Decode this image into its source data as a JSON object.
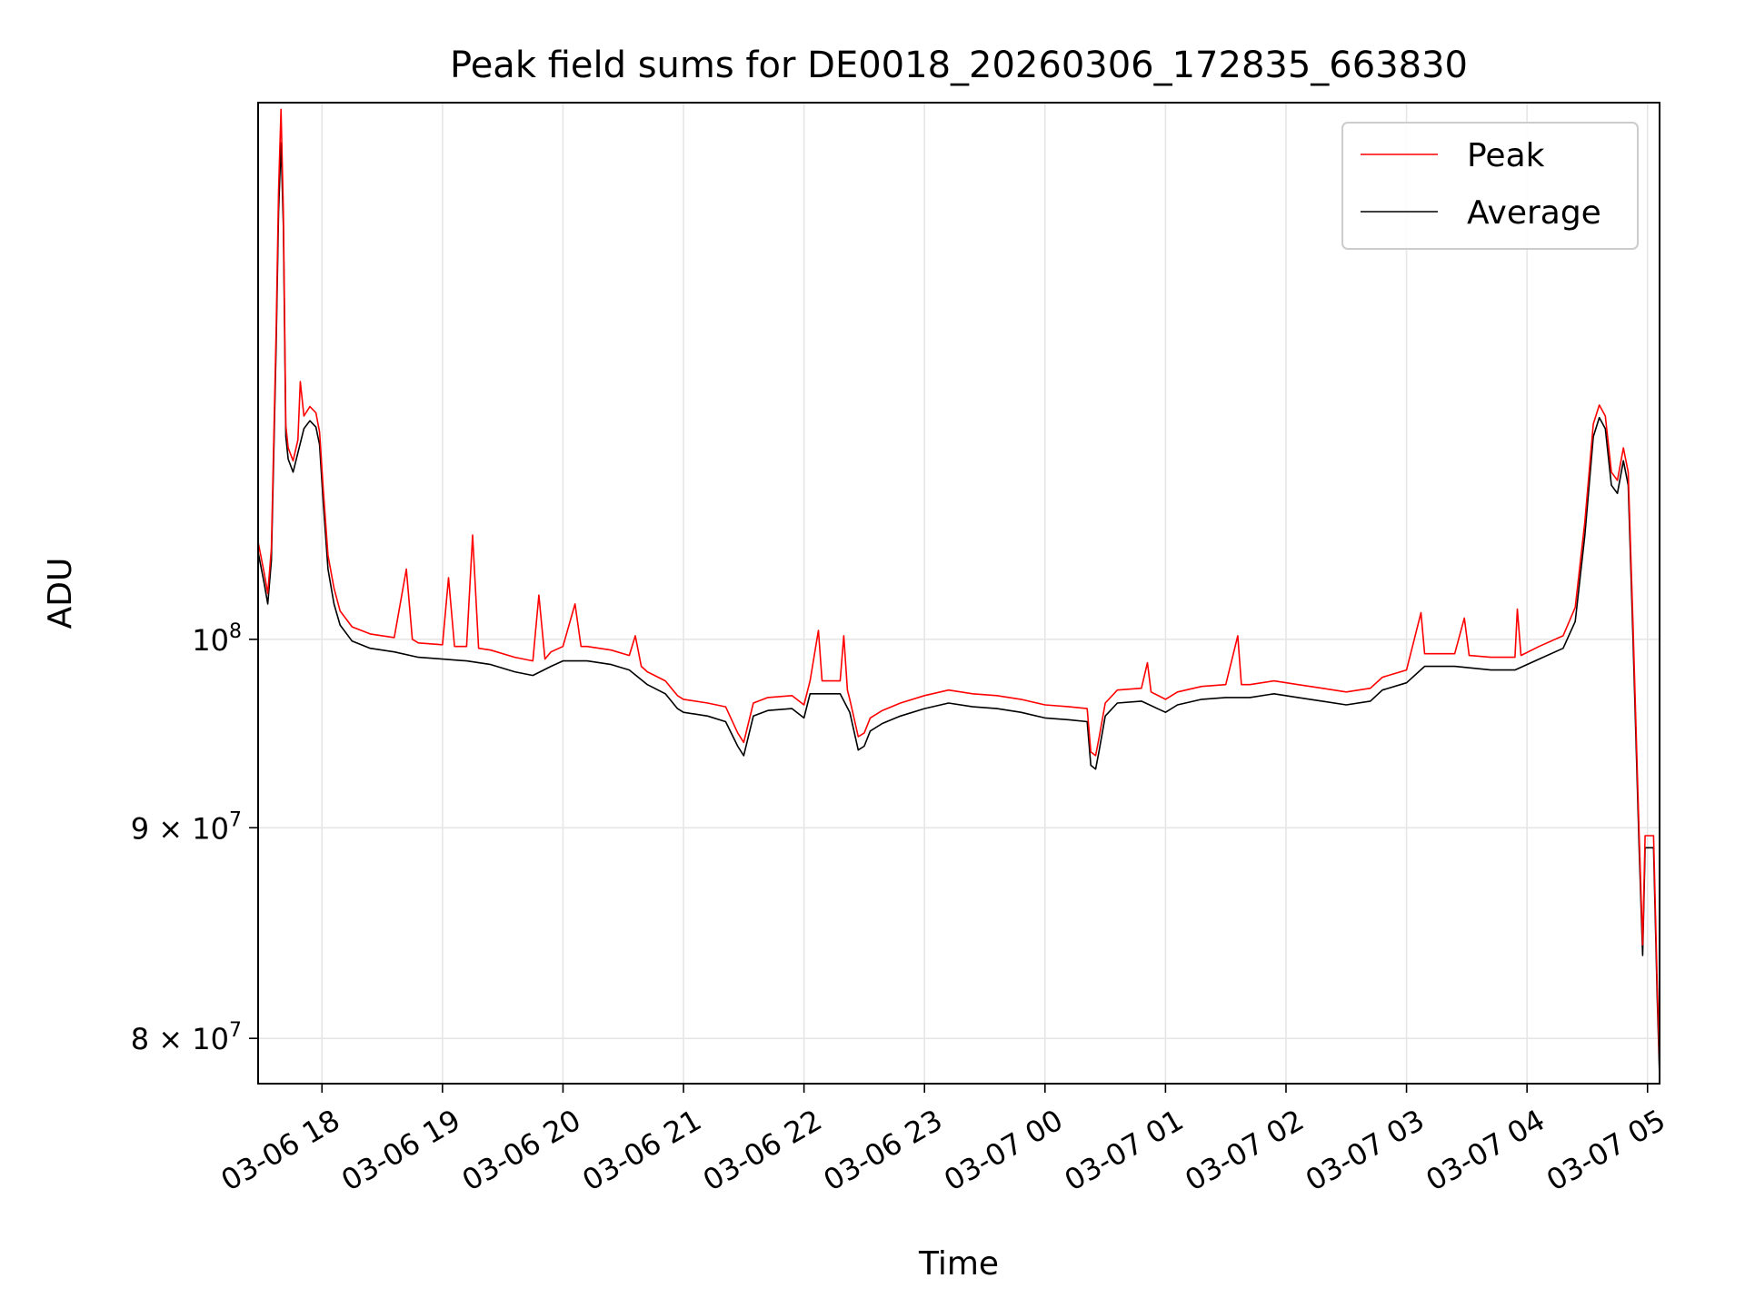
{
  "chart_data": {
    "type": "line",
    "title": "Peak field sums for DE0018_20260306_172835_663830",
    "xlabel": "Time",
    "ylabel": "ADU",
    "yscale": "log",
    "xlim_hours": [
      17.47,
      29.1
    ],
    "ylim": [
      78000000,
      135000000
    ],
    "grid": true,
    "legend_position": "upper right",
    "x_ticks": [
      {
        "hour": 18,
        "label": "03-06 18"
      },
      {
        "hour": 19,
        "label": "03-06 19"
      },
      {
        "hour": 20,
        "label": "03-06 20"
      },
      {
        "hour": 21,
        "label": "03-06 21"
      },
      {
        "hour": 22,
        "label": "03-06 22"
      },
      {
        "hour": 23,
        "label": "03-06 23"
      },
      {
        "hour": 24,
        "label": "03-07 00"
      },
      {
        "hour": 25,
        "label": "03-07 01"
      },
      {
        "hour": 26,
        "label": "03-07 02"
      },
      {
        "hour": 27,
        "label": "03-07 03"
      },
      {
        "hour": 28,
        "label": "03-07 04"
      },
      {
        "hour": 29,
        "label": "03-07 05"
      }
    ],
    "y_ticks": [
      {
        "value": 100000000,
        "base": "10",
        "exp": "8",
        "mant": ""
      },
      {
        "value": 90000000,
        "base": "10",
        "exp": "7",
        "mant": "9"
      },
      {
        "value": 80000000,
        "base": "10",
        "exp": "7",
        "mant": "8"
      }
    ],
    "times_label": "×",
    "series": [
      {
        "name": "Average",
        "color": "#000000",
        "points": [
          [
            17.47,
            105.0
          ],
          [
            17.52,
            103.2
          ],
          [
            17.55,
            102.0
          ],
          [
            17.58,
            104.5
          ],
          [
            17.62,
            118.0
          ],
          [
            17.64,
            127.0
          ],
          [
            17.66,
            132.0
          ],
          [
            17.68,
            126.0
          ],
          [
            17.7,
            112.0
          ],
          [
            17.72,
            110.6
          ],
          [
            17.76,
            109.8
          ],
          [
            17.8,
            111.0
          ],
          [
            17.85,
            112.5
          ],
          [
            17.9,
            113.0
          ],
          [
            17.95,
            112.6
          ],
          [
            17.98,
            111.5
          ],
          [
            18.01,
            108.0
          ],
          [
            18.05,
            104.0
          ],
          [
            18.1,
            102.0
          ],
          [
            18.15,
            100.8
          ],
          [
            18.25,
            99.9
          ],
          [
            18.4,
            99.5
          ],
          [
            18.6,
            99.3
          ],
          [
            18.8,
            99.0
          ],
          [
            19.0,
            98.9
          ],
          [
            19.2,
            98.8
          ],
          [
            19.4,
            98.6
          ],
          [
            19.6,
            98.2
          ],
          [
            19.75,
            98.0
          ],
          [
            19.9,
            98.5
          ],
          [
            20.0,
            98.8
          ],
          [
            20.2,
            98.8
          ],
          [
            20.4,
            98.6
          ],
          [
            20.55,
            98.3
          ],
          [
            20.7,
            97.5
          ],
          [
            20.85,
            97.0
          ],
          [
            20.95,
            96.2
          ],
          [
            21.0,
            96.0
          ],
          [
            21.2,
            95.8
          ],
          [
            21.35,
            95.5
          ],
          [
            21.45,
            94.2
          ],
          [
            21.5,
            93.7
          ],
          [
            21.58,
            95.8
          ],
          [
            21.7,
            96.1
          ],
          [
            21.9,
            96.2
          ],
          [
            22.0,
            95.7
          ],
          [
            22.05,
            97.0
          ],
          [
            22.3,
            97.0
          ],
          [
            22.38,
            96.0
          ],
          [
            22.45,
            94.0
          ],
          [
            22.5,
            94.2
          ],
          [
            22.55,
            95.0
          ],
          [
            22.65,
            95.4
          ],
          [
            22.8,
            95.8
          ],
          [
            23.0,
            96.2
          ],
          [
            23.2,
            96.5
          ],
          [
            23.4,
            96.3
          ],
          [
            23.6,
            96.2
          ],
          [
            23.8,
            96.0
          ],
          [
            24.0,
            95.7
          ],
          [
            24.2,
            95.6
          ],
          [
            24.35,
            95.5
          ],
          [
            24.38,
            93.2
          ],
          [
            24.42,
            93.0
          ],
          [
            24.45,
            94.0
          ],
          [
            24.5,
            95.8
          ],
          [
            24.6,
            96.5
          ],
          [
            24.8,
            96.6
          ],
          [
            25.0,
            96.0
          ],
          [
            25.1,
            96.4
          ],
          [
            25.3,
            96.7
          ],
          [
            25.5,
            96.8
          ],
          [
            25.7,
            96.8
          ],
          [
            25.9,
            97.0
          ],
          [
            26.1,
            96.8
          ],
          [
            26.3,
            96.6
          ],
          [
            26.5,
            96.4
          ],
          [
            26.7,
            96.6
          ],
          [
            26.8,
            97.2
          ],
          [
            27.0,
            97.6
          ],
          [
            27.15,
            98.5
          ],
          [
            27.4,
            98.5
          ],
          [
            27.7,
            98.3
          ],
          [
            27.9,
            98.3
          ],
          [
            28.1,
            98.9
          ],
          [
            28.3,
            99.5
          ],
          [
            28.4,
            101.0
          ],
          [
            28.48,
            106.0
          ],
          [
            28.55,
            112.0
          ],
          [
            28.6,
            113.2
          ],
          [
            28.65,
            112.5
          ],
          [
            28.7,
            109.0
          ],
          [
            28.75,
            108.5
          ],
          [
            28.8,
            110.5
          ],
          [
            28.84,
            109.0
          ],
          [
            28.88,
            100.0
          ],
          [
            28.93,
            89.0
          ],
          [
            28.96,
            83.8
          ],
          [
            28.98,
            89.0
          ],
          [
            29.05,
            89.0
          ],
          [
            29.08,
            82.0
          ],
          [
            29.1,
            78.3
          ]
        ]
      },
      {
        "name": "Peak",
        "color": "#ff0000",
        "points": [
          [
            17.47,
            105.6
          ],
          [
            17.52,
            103.8
          ],
          [
            17.55,
            102.6
          ],
          [
            17.58,
            105.2
          ],
          [
            17.62,
            119.0
          ],
          [
            17.64,
            128.5
          ],
          [
            17.66,
            134.5
          ],
          [
            17.68,
            127.0
          ],
          [
            17.7,
            112.7
          ],
          [
            17.72,
            111.3
          ],
          [
            17.76,
            110.5
          ],
          [
            17.8,
            111.8
          ],
          [
            17.82,
            115.5
          ],
          [
            17.85,
            113.3
          ],
          [
            17.9,
            113.9
          ],
          [
            17.95,
            113.5
          ],
          [
            17.98,
            112.3
          ],
          [
            18.01,
            108.8
          ],
          [
            18.05,
            104.8
          ],
          [
            18.1,
            102.9
          ],
          [
            18.15,
            101.6
          ],
          [
            18.25,
            100.7
          ],
          [
            18.4,
            100.3
          ],
          [
            18.6,
            100.1
          ],
          [
            18.7,
            104.0
          ],
          [
            18.75,
            100.0
          ],
          [
            18.8,
            99.8
          ],
          [
            19.0,
            99.7
          ],
          [
            19.05,
            103.5
          ],
          [
            19.1,
            99.6
          ],
          [
            19.2,
            99.6
          ],
          [
            19.25,
            106.0
          ],
          [
            19.3,
            99.5
          ],
          [
            19.4,
            99.4
          ],
          [
            19.6,
            99.0
          ],
          [
            19.75,
            98.8
          ],
          [
            19.8,
            102.5
          ],
          [
            19.85,
            98.9
          ],
          [
            19.9,
            99.3
          ],
          [
            20.0,
            99.6
          ],
          [
            20.1,
            102.0
          ],
          [
            20.15,
            99.6
          ],
          [
            20.2,
            99.6
          ],
          [
            20.4,
            99.4
          ],
          [
            20.55,
            99.1
          ],
          [
            20.6,
            100.2
          ],
          [
            20.65,
            98.5
          ],
          [
            20.7,
            98.2
          ],
          [
            20.85,
            97.7
          ],
          [
            20.95,
            96.9
          ],
          [
            21.0,
            96.7
          ],
          [
            21.2,
            96.5
          ],
          [
            21.35,
            96.3
          ],
          [
            21.45,
            94.9
          ],
          [
            21.5,
            94.4
          ],
          [
            21.58,
            96.5
          ],
          [
            21.7,
            96.8
          ],
          [
            21.9,
            96.9
          ],
          [
            22.0,
            96.4
          ],
          [
            22.05,
            97.7
          ],
          [
            22.12,
            100.5
          ],
          [
            22.15,
            97.7
          ],
          [
            22.3,
            97.7
          ],
          [
            22.33,
            100.2
          ],
          [
            22.36,
            97.2
          ],
          [
            22.38,
            96.7
          ],
          [
            22.45,
            94.7
          ],
          [
            22.5,
            94.9
          ],
          [
            22.55,
            95.7
          ],
          [
            22.65,
            96.1
          ],
          [
            22.8,
            96.5
          ],
          [
            23.0,
            96.9
          ],
          [
            23.2,
            97.2
          ],
          [
            23.4,
            97.0
          ],
          [
            23.6,
            96.9
          ],
          [
            23.8,
            96.7
          ],
          [
            24.0,
            96.4
          ],
          [
            24.2,
            96.3
          ],
          [
            24.35,
            96.2
          ],
          [
            24.38,
            93.9
          ],
          [
            24.42,
            93.7
          ],
          [
            24.45,
            94.7
          ],
          [
            24.5,
            96.5
          ],
          [
            24.6,
            97.2
          ],
          [
            24.8,
            97.3
          ],
          [
            24.85,
            98.7
          ],
          [
            24.88,
            97.1
          ],
          [
            25.0,
            96.7
          ],
          [
            25.1,
            97.1
          ],
          [
            25.3,
            97.4
          ],
          [
            25.5,
            97.5
          ],
          [
            25.6,
            100.2
          ],
          [
            25.63,
            97.5
          ],
          [
            25.7,
            97.5
          ],
          [
            25.9,
            97.7
          ],
          [
            26.1,
            97.5
          ],
          [
            26.3,
            97.3
          ],
          [
            26.5,
            97.1
          ],
          [
            26.7,
            97.3
          ],
          [
            26.8,
            97.9
          ],
          [
            27.0,
            98.3
          ],
          [
            27.12,
            101.5
          ],
          [
            27.15,
            99.2
          ],
          [
            27.4,
            99.2
          ],
          [
            27.48,
            101.2
          ],
          [
            27.52,
            99.1
          ],
          [
            27.7,
            99.0
          ],
          [
            27.9,
            99.0
          ],
          [
            27.92,
            101.7
          ],
          [
            27.95,
            99.1
          ],
          [
            28.1,
            99.6
          ],
          [
            28.3,
            100.2
          ],
          [
            28.4,
            101.8
          ],
          [
            28.48,
            106.8
          ],
          [
            28.55,
            112.8
          ],
          [
            28.6,
            114.0
          ],
          [
            28.65,
            113.3
          ],
          [
            28.7,
            109.8
          ],
          [
            28.75,
            109.3
          ],
          [
            28.8,
            111.3
          ],
          [
            28.84,
            109.8
          ],
          [
            28.88,
            100.8
          ],
          [
            28.93,
            89.7
          ],
          [
            28.96,
            84.3
          ],
          [
            28.98,
            89.6
          ],
          [
            29.05,
            89.6
          ],
          [
            29.08,
            82.6
          ],
          [
            29.1,
            78.8
          ]
        ]
      }
    ]
  }
}
